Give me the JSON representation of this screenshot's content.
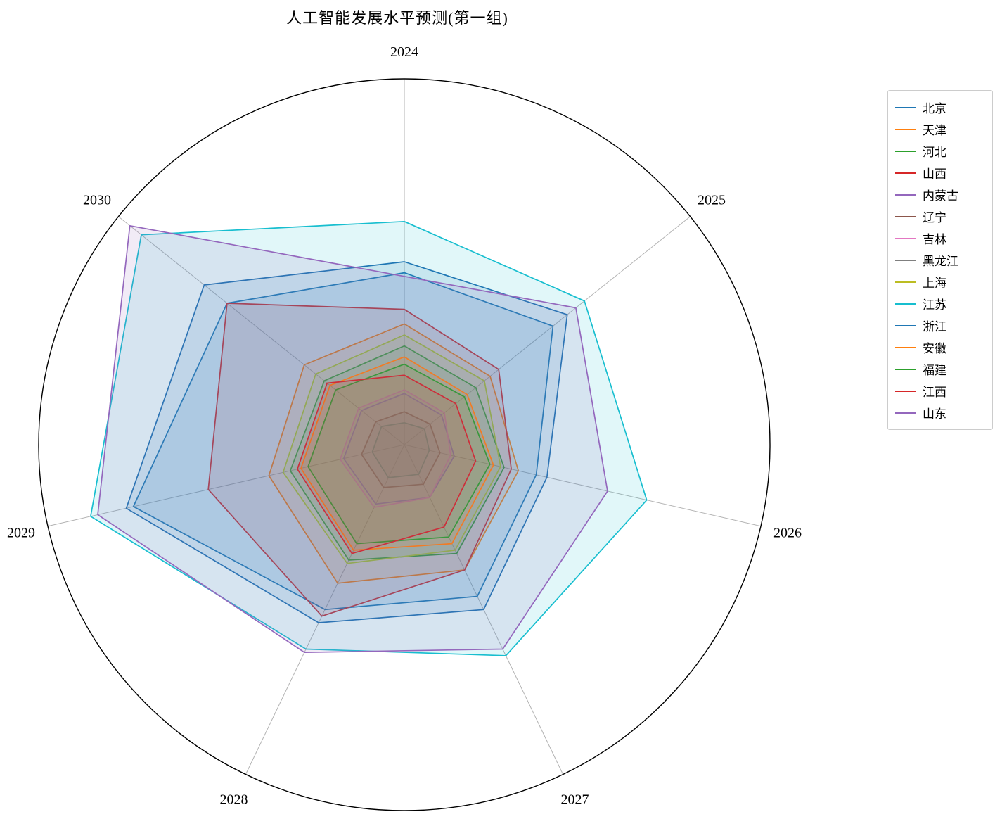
{
  "chart_data": {
    "type": "radar",
    "title": "人工智能发展水平预测(第一组)",
    "categories": [
      "2024",
      "2025",
      "2026",
      "2027",
      "2028",
      "2029",
      "2030"
    ],
    "axis_direction": "clockwise-from-top",
    "axis_range": [
      0,
      100
    ],
    "max": 100,
    "grid": "spokes-and-outer-circle",
    "legend_position": "upper right",
    "outer_circle_color": "#000000",
    "spoke_color": "#b3b3b3",
    "fill_opacity": 0.13,
    "series": [
      {
        "name": "北京",
        "color": "#1f77b4",
        "values": [
          47,
          52,
          37,
          46,
          50,
          76,
          62
        ]
      },
      {
        "name": "天津",
        "color": "#ff7f0e",
        "values": [
          33,
          30,
          32,
          38,
          42,
          38,
          35
        ]
      },
      {
        "name": "河北",
        "color": "#2ca02c",
        "values": [
          27,
          25,
          28,
          33,
          35,
          32,
          28
        ]
      },
      {
        "name": "山西",
        "color": "#d62728",
        "values": [
          37,
          33,
          30,
          38,
          52,
          55,
          62
        ]
      },
      {
        "name": "内蒙古",
        "color": "#9467bd",
        "values": [
          14,
          13,
          14,
          16,
          18,
          17,
          15
        ]
      },
      {
        "name": "辽宁",
        "color": "#8c564b",
        "values": [
          9,
          9,
          10,
          12,
          13,
          12,
          10
        ]
      },
      {
        "name": "吉林",
        "color": "#e377c2",
        "values": [
          15,
          14,
          13,
          16,
          19,
          18,
          16
        ]
      },
      {
        "name": "黑龙江",
        "color": "#7f7f7f",
        "values": [
          6,
          7,
          7,
          9,
          10,
          9,
          8
        ]
      },
      {
        "name": "上海",
        "color": "#bcbd22",
        "values": [
          30,
          28,
          27,
          32,
          36,
          34,
          31
        ]
      },
      {
        "name": "江苏",
        "color": "#17becf",
        "values": [
          61,
          63,
          68,
          64,
          62,
          88,
          92
        ]
      },
      {
        "name": "浙江",
        "color": "#1f77b4",
        "values": [
          50,
          57,
          40,
          50,
          54,
          78,
          70
        ]
      },
      {
        "name": "安徽",
        "color": "#ff7f0e",
        "values": [
          24,
          22,
          25,
          30,
          32,
          29,
          26
        ]
      },
      {
        "name": "福建",
        "color": "#2ca02c",
        "values": [
          22,
          21,
          24,
          28,
          30,
          27,
          24
        ]
      },
      {
        "name": "江西",
        "color": "#d62728",
        "values": [
          19,
          18,
          20,
          25,
          33,
          30,
          27
        ]
      },
      {
        "name": "山东",
        "color": "#9467bd",
        "values": [
          46,
          60,
          57,
          62,
          63,
          86,
          96
        ]
      }
    ]
  }
}
